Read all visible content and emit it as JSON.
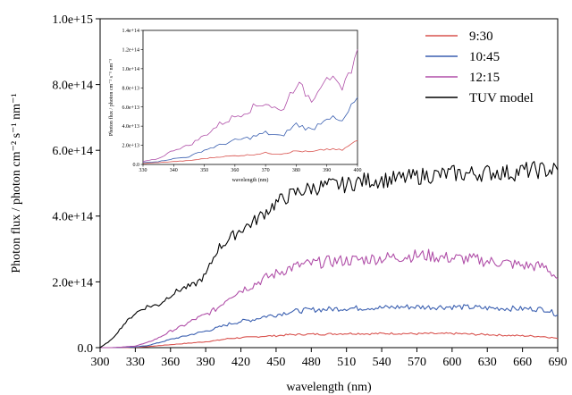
{
  "chart_data": [
    {
      "type": "line",
      "title": "",
      "xlabel": "wavelength (nm)",
      "ylabel": "Photon flux / photon cm⁻² s⁻¹ nm⁻¹",
      "xlim": [
        300,
        690
      ],
      "ylim": [
        0,
        1000000000000000.0
      ],
      "x_ticks": [
        300,
        330,
        360,
        390,
        420,
        450,
        480,
        510,
        540,
        570,
        600,
        630,
        660,
        690
      ],
      "y_ticks": [
        {
          "value": 0,
          "label": "0.0"
        },
        {
          "value": 200000000000000.0,
          "label": "2.0e+14"
        },
        {
          "value": 400000000000000.0,
          "label": "4.0e+14"
        },
        {
          "value": 600000000000000.0,
          "label": "6.0e+14"
        },
        {
          "value": 800000000000000.0,
          "label": "8.0e+14"
        },
        {
          "value": 1000000000000000.0,
          "label": "1.0e+15"
        }
      ],
      "legend_position": "top-right",
      "grid": false,
      "x": [
        300,
        310,
        320,
        330,
        340,
        350,
        360,
        370,
        380,
        390,
        400,
        410,
        420,
        430,
        440,
        450,
        460,
        470,
        480,
        490,
        500,
        510,
        520,
        530,
        540,
        550,
        560,
        570,
        580,
        590,
        600,
        610,
        620,
        630,
        640,
        650,
        660,
        670,
        680,
        690
      ],
      "series": [
        {
          "name": "9:30",
          "color": "#d9534f",
          "values": [
            0,
            0,
            0,
            1000000000000.0,
            3000000000000.0,
            6000000000000.0,
            9000000000000.0,
            12000000000000.0,
            15000000000000.0,
            18000000000000.0,
            22000000000000.0,
            28000000000000.0,
            30000000000000.0,
            32000000000000.0,
            35000000000000.0,
            36000000000000.0,
            39000000000000.0,
            40000000000000.0,
            41000000000000.0,
            41000000000000.0,
            42000000000000.0,
            43000000000000.0,
            43000000000000.0,
            42000000000000.0,
            43000000000000.0,
            43000000000000.0,
            43000000000000.0,
            42000000000000.0,
            43000000000000.0,
            42000000000000.0,
            43000000000000.0,
            42000000000000.0,
            40000000000000.0,
            40000000000000.0,
            38000000000000.0,
            37000000000000.0,
            36000000000000.0,
            35000000000000.0,
            33000000000000.0,
            28000000000000.0
          ]
        },
        {
          "name": "10:45",
          "color": "#3a5fb0",
          "values": [
            0,
            0,
            1000000000000.0,
            2000000000000.0,
            6000000000000.0,
            15000000000000.0,
            25000000000000.0,
            33000000000000.0,
            42000000000000.0,
            50000000000000.0,
            60000000000000.0,
            72000000000000.0,
            80000000000000.0,
            85000000000000.0,
            95000000000000.0,
            100000000000000.0,
            108000000000000.0,
            112000000000000.0,
            115000000000000.0,
            116000000000000.0,
            118000000000000.0,
            120000000000000.0,
            120000000000000.0,
            122000000000000.0,
            121000000000000.0,
            123000000000000.0,
            124000000000000.0,
            124000000000000.0,
            123000000000000.0,
            124000000000000.0,
            124000000000000.0,
            123000000000000.0,
            122000000000000.0,
            120000000000000.0,
            120000000000000.0,
            119000000000000.0,
            118000000000000.0,
            118000000000000.0,
            116000000000000.0,
            100000000000000.0
          ]
        },
        {
          "name": "12:15",
          "color": "#b04fa8",
          "values": [
            0,
            0,
            2000000000000.0,
            5000000000000.0,
            15000000000000.0,
            30000000000000.0,
            50000000000000.0,
            65000000000000.0,
            85000000000000.0,
            100000000000000.0,
            120000000000000.0,
            155000000000000.0,
            175000000000000.0,
            190000000000000.0,
            210000000000000.0,
            225000000000000.0,
            240000000000000.0,
            250000000000000.0,
            255000000000000.0,
            260000000000000.0,
            263000000000000.0,
            265000000000000.0,
            267000000000000.0,
            270000000000000.0,
            272000000000000.0,
            275000000000000.0,
            278000000000000.0,
            280000000000000.0,
            280000000000000.0,
            275000000000000.0,
            272000000000000.0,
            270000000000000.0,
            268000000000000.0,
            262000000000000.0,
            260000000000000.0,
            255000000000000.0,
            250000000000000.0,
            248000000000000.0,
            245000000000000.0,
            210000000000000.0
          ]
        },
        {
          "name": "TUV model",
          "color": "#000000",
          "values": [
            0,
            25000000000000.0,
            70000000000000.0,
            105000000000000.0,
            125000000000000.0,
            130000000000000.0,
            160000000000000.0,
            180000000000000.0,
            190000000000000.0,
            220000000000000.0,
            300000000000000.0,
            330000000000000.0,
            360000000000000.0,
            380000000000000.0,
            410000000000000.0,
            440000000000000.0,
            460000000000000.0,
            475000000000000.0,
            485000000000000.0,
            490000000000000.0,
            495000000000000.0,
            495000000000000.0,
            505000000000000.0,
            510000000000000.0,
            510000000000000.0,
            512000000000000.0,
            515000000000000.0,
            520000000000000.0,
            525000000000000.0,
            525000000000000.0,
            530000000000000.0,
            528000000000000.0,
            530000000000000.0,
            532000000000000.0,
            535000000000000.0,
            530000000000000.0,
            538000000000000.0,
            540000000000000.0,
            540000000000000.0,
            540000000000000.0
          ]
        }
      ]
    },
    {
      "type": "line",
      "title": "",
      "xlabel": "wavelength (nm)",
      "ylabel": "Photon flux / photon cm⁻² s⁻¹ nm⁻¹",
      "xlim": [
        330,
        400
      ],
      "ylim": [
        0,
        140000000000000.0
      ],
      "x_ticks": [
        330,
        340,
        350,
        360,
        370,
        380,
        390,
        400
      ],
      "y_ticks": [
        {
          "value": 0,
          "label": "0.0"
        },
        {
          "value": 20000000000000.0,
          "label": "2.0e+13"
        },
        {
          "value": 40000000000000.0,
          "label": "4.0e+13"
        },
        {
          "value": 60000000000000.0,
          "label": "6.0e+13"
        },
        {
          "value": 80000000000000.0,
          "label": "8.0e+13"
        },
        {
          "value": 100000000000000.0,
          "label": "1.0e+14"
        },
        {
          "value": 120000000000000.0,
          "label": "1.2e+14"
        },
        {
          "value": 140000000000000.0,
          "label": "1.4e+14"
        }
      ],
      "x": [
        330,
        335,
        340,
        345,
        350,
        355,
        360,
        365,
        370,
        375,
        380,
        385,
        390,
        395,
        400
      ],
      "series": [
        {
          "name": "9:30",
          "color": "#d9534f",
          "values": [
            1000000000000.0,
            2000000000000.0,
            3000000000000.0,
            4000000000000.0,
            6000000000000.0,
            8000000000000.0,
            9000000000000.0,
            10000000000000.0,
            12000000000000.0,
            11000000000000.0,
            14000000000000.0,
            13000000000000.0,
            16000000000000.0,
            15000000000000.0,
            25000000000000.0
          ]
        },
        {
          "name": "10:45",
          "color": "#3a5fb0",
          "values": [
            2000000000000.0,
            3000000000000.0,
            6000000000000.0,
            8000000000000.0,
            15000000000000.0,
            20000000000000.0,
            25000000000000.0,
            28000000000000.0,
            33000000000000.0,
            29000000000000.0,
            42000000000000.0,
            36000000000000.0,
            50000000000000.0,
            44000000000000.0,
            70000000000000.0
          ]
        },
        {
          "name": "12:15",
          "color": "#b04fa8",
          "values": [
            3000000000000.0,
            6000000000000.0,
            15000000000000.0,
            20000000000000.0,
            30000000000000.0,
            42000000000000.0,
            50000000000000.0,
            58000000000000.0,
            65000000000000.0,
            55000000000000.0,
            85000000000000.0,
            68000000000000.0,
            95000000000000.0,
            75000000000000.0,
            120000000000000.0
          ]
        }
      ]
    }
  ]
}
